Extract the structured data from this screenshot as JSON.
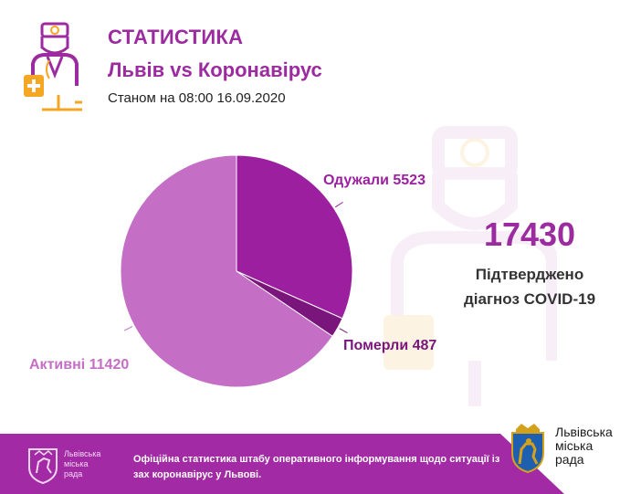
{
  "header": {
    "title": "СТАТИСТИКА",
    "subtitle": "Львів vs Коронавірус",
    "date": "Станом на 08:00 16.09.2020"
  },
  "summary": {
    "total": "17430",
    "caption_line1": "Підтверджено",
    "caption_line2": "діагноз COVID-19"
  },
  "chart_data": {
    "type": "pie",
    "title": "",
    "slices": [
      {
        "name": "Одужали",
        "value": 5523,
        "color": "#9c1f9f",
        "label": "Одужали 5523",
        "label_color": "#9c1f9f"
      },
      {
        "name": "Померли",
        "value": 487,
        "color": "#7a157c",
        "label": "Померли 487",
        "label_color": "#7a157c"
      },
      {
        "name": "Активні",
        "value": 11420,
        "color": "#c46ec6",
        "label": "Активні 11420",
        "label_color": "#c46ec6"
      }
    ]
  },
  "footer": {
    "brand_line1": "Львівська",
    "brand_line2": "міська",
    "brand_line3": "рада",
    "text": "Офіційна статистика штабу оперативного інформування щодо ситуації із зах коронавірус у Львові.",
    "council_line1": "Львівська",
    "council_line2": "міська",
    "council_line3": "рада"
  },
  "colors": {
    "brand": "#9c2ba0",
    "footer": "#a32aa5",
    "accent_orange": "#f5a623"
  },
  "icons": {
    "header": "doctor-icon",
    "footer": "lion-emblem-icon",
    "council": "city-coat-of-arms-icon"
  }
}
